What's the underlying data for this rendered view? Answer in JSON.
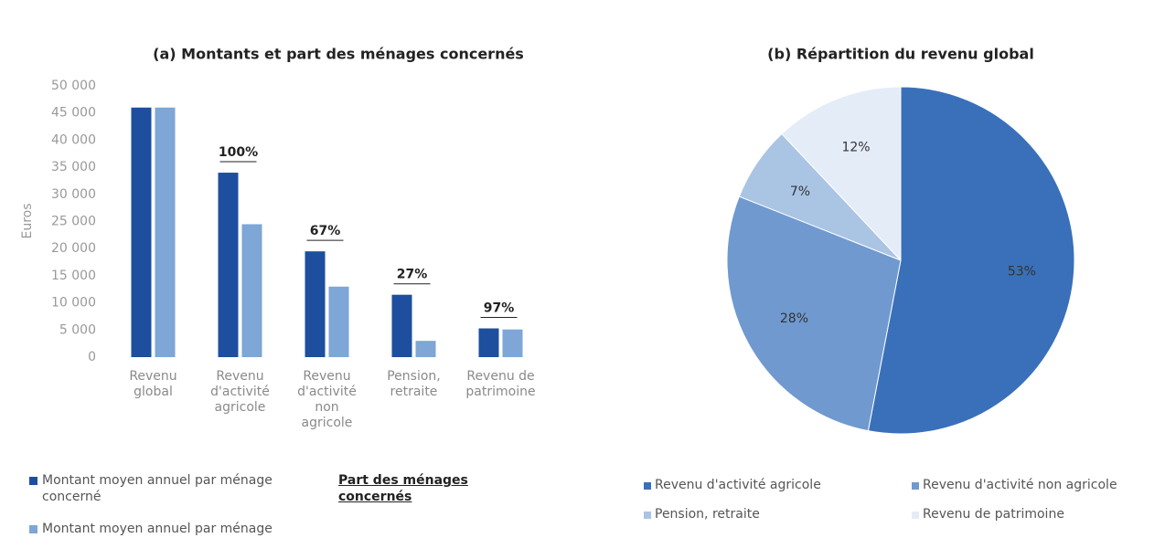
{
  "chart_data": [
    {
      "type": "bar",
      "title": "(a) Montants et part des ménages concernés",
      "y_label": "Euros",
      "categories": [
        "Revenu global",
        "Revenu d'activité agricole",
        "Revenu d'activité non agricole",
        "Pension, retraite",
        "Revenu de patrimoine"
      ],
      "series": [
        {
          "name": "Montant moyen annuel par ménage concerné",
          "color": "#1d4f9e",
          "values": [
            46000,
            34000,
            19500,
            11500,
            5300
          ]
        },
        {
          "name": "Montant moyen annuel par ménage",
          "color": "#7ea6d6",
          "values": [
            46000,
            24500,
            13000,
            3000,
            5100
          ]
        }
      ],
      "share": {
        "name": "Part des ménages concernés",
        "values": [
          null,
          100,
          67,
          27,
          97
        ],
        "value_labels": [
          null,
          "100%",
          "67%",
          "27%",
          "97%"
        ]
      },
      "ylim": [
        0,
        50000
      ],
      "yticks": [
        0,
        {
          "value": 5000,
          "label": "5 000"
        },
        {
          "value": 10000,
          "label": "10 000"
        },
        {
          "value": 15000,
          "label": "15 000"
        },
        {
          "value": 20000,
          "label": "20 000"
        },
        {
          "value": 25000,
          "label": "25 000"
        },
        {
          "value": 30000,
          "label": "30 000"
        },
        {
          "value": 35000,
          "label": "35 000"
        },
        {
          "value": 40000,
          "label": "40 000"
        },
        {
          "value": 45000,
          "label": "45 000"
        },
        {
          "value": 50000,
          "label": "50 000"
        }
      ],
      "grid": false
    },
    {
      "type": "pie",
      "title": "(b) Répartition du revenu global",
      "categories": [
        "Revenu d'activité agricole",
        "Revenu d'activité non agricole",
        "Pension, retraite",
        "Revenu de patrimoine"
      ],
      "values": [
        53,
        28,
        7,
        12
      ],
      "value_labels": [
        "53%",
        "28%",
        "7%",
        "12%"
      ],
      "colors": [
        "#3a70b9",
        "#7099cf",
        "#aac4e4",
        "#e4ecf7"
      ]
    }
  ]
}
